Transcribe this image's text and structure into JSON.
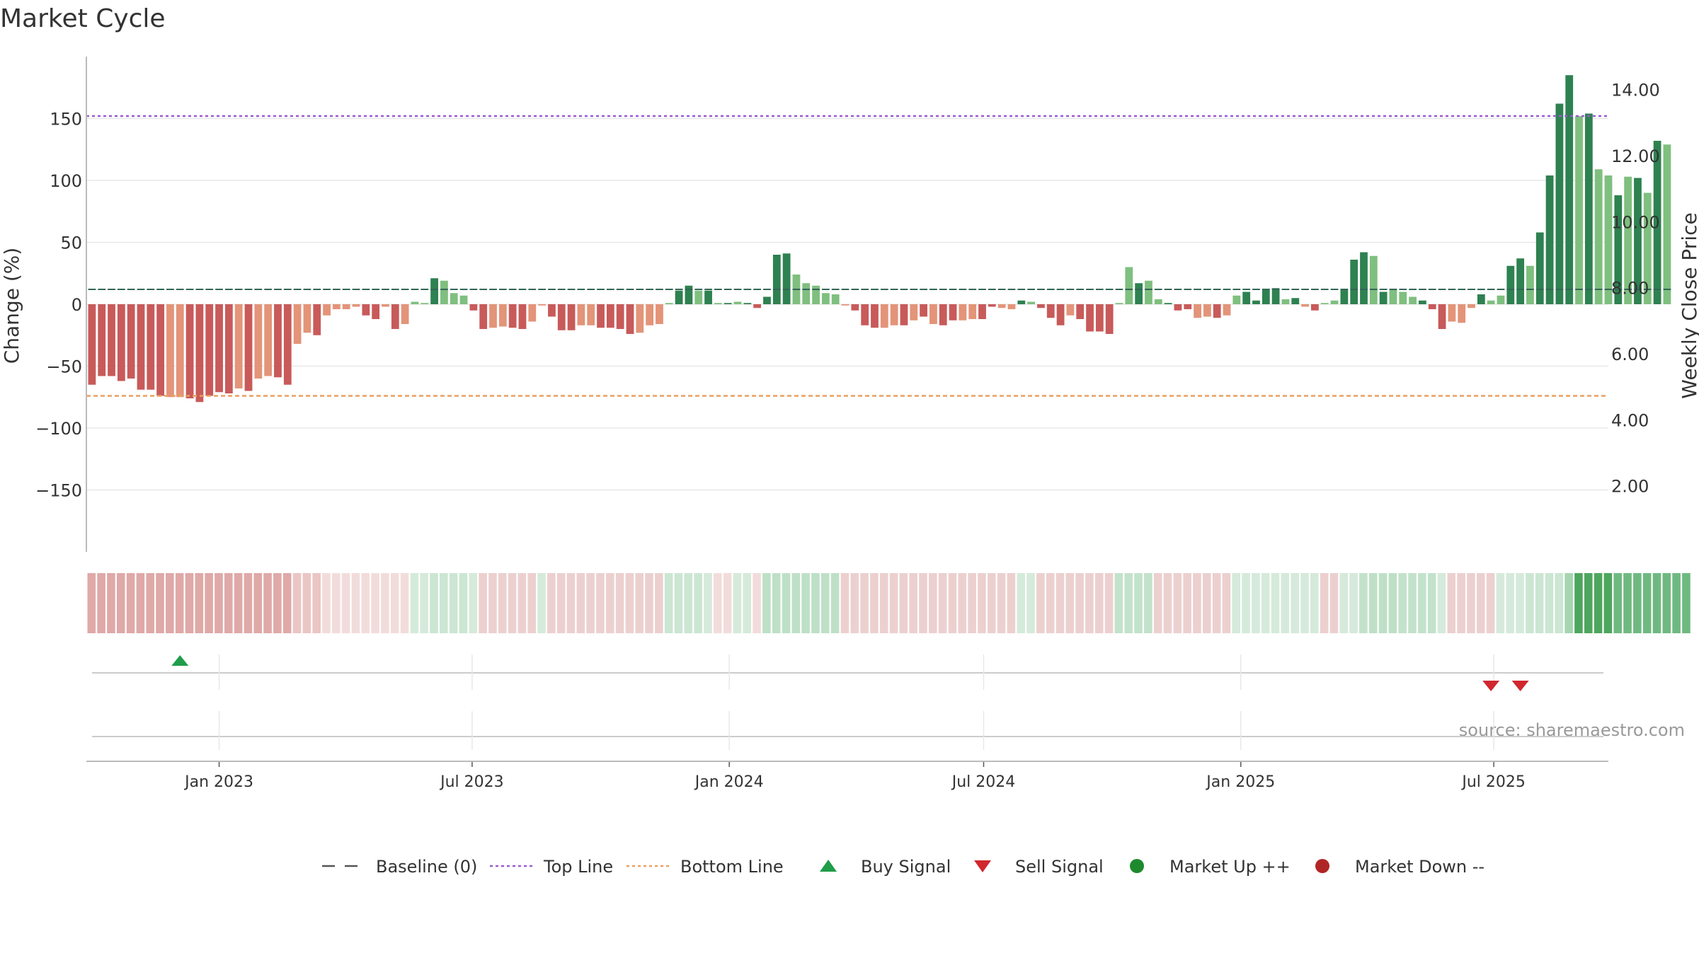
{
  "chart_data": {
    "type": "bar",
    "title": "Market Cycle",
    "ylabel": "Change (%)",
    "ylabel_right": "Weekly Close Price",
    "ylim": [
      -200,
      200
    ],
    "ylim_right": [
      0,
      15
    ],
    "y_ticks": [
      150,
      100,
      50,
      0,
      -50,
      -100,
      -150
    ],
    "y_tick_labels": [
      "150",
      "100",
      "50",
      "0",
      "−50",
      "−100",
      "−150"
    ],
    "y_right_ticks": [
      14,
      12,
      10,
      8,
      6,
      4,
      2
    ],
    "y_right_tick_labels": [
      "14.00",
      "12.00",
      "10.00",
      "8.00",
      "6.00",
      "4.00",
      "2.00"
    ],
    "x_range": [
      "2022-09-28",
      "2025-09-21"
    ],
    "x_ticks": [
      "2023-01-01",
      "2023-07-01",
      "2024-01-01",
      "2024-07-01",
      "2025-01-01",
      "2025-07-01"
    ],
    "x_tick_labels": [
      "Jan 2023",
      "Jul 2023",
      "Jan 2024",
      "Jul 2024",
      "Jan 2025",
      "Jul 2025"
    ],
    "grid": true,
    "reference_lines": [
      {
        "name": "Top Line",
        "value": 152,
        "color": "#9b59d0",
        "style": "dotted"
      },
      {
        "name": "Bottom Line",
        "value": -74,
        "color": "#e8a060",
        "style": "dashed"
      },
      {
        "name": "Baseline (0)",
        "value": 0,
        "color": "#555555",
        "style": "dashed"
      }
    ],
    "first_week": "2022-10-02",
    "week_step_days": 7,
    "change_values": [
      -65,
      -58,
      -58,
      -62,
      -60,
      -69,
      -69,
      -74,
      -75,
      -75,
      -76,
      -79,
      -74,
      -71,
      -72,
      -68,
      -70,
      -60,
      -58,
      -59,
      -65,
      -32,
      -23,
      -25,
      -9,
      -4,
      -4,
      -2,
      -9,
      -12,
      -2,
      -20,
      -16,
      2,
      1,
      21,
      19,
      9,
      7,
      -5,
      -20,
      -19,
      -18,
      -19,
      -20,
      -14,
      -1,
      -10,
      -21,
      -21,
      -17,
      -17,
      -19,
      -19,
      -20,
      -24,
      -23,
      -17,
      -16,
      1,
      11,
      15,
      11,
      11,
      1,
      1,
      2,
      1,
      -3,
      6,
      40,
      41,
      24,
      17,
      15,
      9,
      8,
      -1,
      -5,
      -17,
      -19,
      -19,
      -17,
      -17,
      -13,
      -10,
      -16,
      -17,
      -13,
      -13,
      -12,
      -12,
      -2,
      -3,
      -4,
      3,
      2,
      -3,
      -11,
      -17,
      -9,
      -12,
      -22,
      -22,
      -24,
      1,
      30,
      17,
      19,
      4,
      1,
      -5,
      -4,
      -11,
      -10,
      -11,
      -9,
      7,
      10,
      3,
      12,
      13,
      4,
      5,
      -2,
      -5,
      1,
      3,
      12,
      36,
      42,
      39,
      10,
      12,
      10,
      6,
      3,
      -4,
      -20,
      -14,
      -15,
      -3,
      8,
      3,
      7,
      31,
      37,
      31,
      58,
      104,
      162,
      185,
      152,
      154,
      109,
      104,
      88,
      103,
      102,
      90,
      132,
      129
    ],
    "change_shades": [
      "d",
      "d",
      "d",
      "d",
      "d",
      "d",
      "d",
      "d",
      "l",
      "l",
      "d",
      "d",
      "d",
      "d",
      "d",
      "l",
      "d",
      "l",
      "l",
      "d",
      "d",
      "l",
      "l",
      "d",
      "l",
      "l",
      "l",
      "l",
      "d",
      "d",
      "l",
      "d",
      "l",
      "l",
      "l",
      "d",
      "l",
      "l",
      "l",
      "d",
      "d",
      "l",
      "l",
      "d",
      "d",
      "l",
      "l",
      "d",
      "d",
      "d",
      "l",
      "l",
      "d",
      "d",
      "d",
      "d",
      "l",
      "l",
      "l",
      "l",
      "d",
      "d",
      "l",
      "d",
      "l",
      "d",
      "l",
      "d",
      "d",
      "d",
      "d",
      "d",
      "l",
      "l",
      "l",
      "l",
      "l",
      "l",
      "d",
      "d",
      "d",
      "l",
      "l",
      "d",
      "l",
      "d",
      "l",
      "d",
      "d",
      "l",
      "l",
      "d",
      "d",
      "l",
      "l",
      "d",
      "l",
      "d",
      "d",
      "d",
      "l",
      "d",
      "d",
      "d",
      "d",
      "l",
      "l",
      "d",
      "l",
      "l",
      "d",
      "d",
      "d",
      "l",
      "l",
      "d",
      "l",
      "l",
      "d",
      "d",
      "d",
      "d",
      "l",
      "d",
      "l",
      "d",
      "l",
      "l",
      "d",
      "d",
      "d",
      "l",
      "d",
      "l",
      "l",
      "l",
      "d",
      "d",
      "d",
      "l",
      "l",
      "l",
      "d",
      "l",
      "l",
      "d",
      "d",
      "l",
      "d",
      "d",
      "d",
      "d",
      "l",
      "d",
      "l",
      "l",
      "d",
      "l",
      "d",
      "l",
      "d",
      "l"
    ],
    "price_line_value": 7.95,
    "heat_colors": [
      "#dfa9a8",
      "#dfa9a8",
      "#dfa9a8",
      "#dfa9a8",
      "#dfa9a8",
      "#dfa9a8",
      "#dfa9a8",
      "#dfa9a8",
      "#dfa9a8",
      "#dfa9a8",
      "#dfa9a8",
      "#dfa9a8",
      "#dfa9a8",
      "#dfa9a8",
      "#dfa9a8",
      "#dfa9a8",
      "#dfa9a8",
      "#dfa9a8",
      "#dfa9a8",
      "#dfa9a8",
      "#dfa9a8",
      "#eac6c4",
      "#eac6c4",
      "#eac6c4",
      "#f2dcdb",
      "#f2dcdb",
      "#f2dcdb",
      "#f2dcdb",
      "#f2dcdb",
      "#f2dcdb",
      "#f2dcdb",
      "#f2dcdb",
      "#f2dcdb",
      "#d5eadb",
      "#d5eadb",
      "#cbe6d2",
      "#cbe6d2",
      "#cbe6d2",
      "#cbe6d2",
      "#d5eadb",
      "#ecd0cf",
      "#ecd0cf",
      "#ecd0cf",
      "#ecd0cf",
      "#ecd0cf",
      "#ecd0cf",
      "#d5eadb",
      "#ecd0cf",
      "#ecd0cf",
      "#ecd0cf",
      "#ecd0cf",
      "#ecd0cf",
      "#ecd0cf",
      "#ecd0cf",
      "#ecd0cf",
      "#ecd0cf",
      "#ecd0cf",
      "#ecd0cf",
      "#ecd0cf",
      "#cbe6d2",
      "#cbe6d2",
      "#cbe6d2",
      "#cbe6d2",
      "#d5eadb",
      "#f2dcdb",
      "#f2dcdb",
      "#d5eadb",
      "#d5eadb",
      "#f2dcdb",
      "#bee0c7",
      "#bee0c7",
      "#bee0c7",
      "#bee0c7",
      "#bee0c7",
      "#bee0c7",
      "#bee0c7",
      "#bee0c7",
      "#ecd0cf",
      "#ecd0cf",
      "#ecd0cf",
      "#ecd0cf",
      "#ecd0cf",
      "#ecd0cf",
      "#ecd0cf",
      "#ecd0cf",
      "#ecd0cf",
      "#ecd0cf",
      "#ecd0cf",
      "#ecd0cf",
      "#ecd0cf",
      "#ecd0cf",
      "#ecd0cf",
      "#ecd0cf",
      "#ecd0cf",
      "#ecd0cf",
      "#d5eadb",
      "#d5eadb",
      "#ecd0cf",
      "#ecd0cf",
      "#ecd0cf",
      "#ecd0cf",
      "#ecd0cf",
      "#ecd0cf",
      "#ecd0cf",
      "#ecd0cf",
      "#c3e2cb",
      "#c3e2cb",
      "#c3e2cb",
      "#c3e2cb",
      "#ecd0cf",
      "#ecd0cf",
      "#ecd0cf",
      "#ecd0cf",
      "#ecd0cf",
      "#ecd0cf",
      "#ecd0cf",
      "#ecd0cf",
      "#d5eadb",
      "#d5eadb",
      "#d5eadb",
      "#d5eadb",
      "#d5eadb",
      "#d5eadb",
      "#d5eadb",
      "#d5eadb",
      "#d5eadb",
      "#ecd0cf",
      "#ecd0cf",
      "#d5eadb",
      "#d5eadb",
      "#c3e2cb",
      "#bee0c7",
      "#bee0c7",
      "#bee0c7",
      "#c3e2cb",
      "#c3e2cb",
      "#c3e2cb",
      "#c3e2cb",
      "#d5eadb",
      "#ecd0cf",
      "#ecd0cf",
      "#ecd0cf",
      "#ecd0cf",
      "#ecd0cf",
      "#d5eadb",
      "#d5eadb",
      "#d5eadb",
      "#cbe6d2",
      "#cbe6d2",
      "#cbe6d2",
      "#cbe6d2",
      "#a6d5b1",
      "#4ea65e",
      "#4ea65e",
      "#4ea65e",
      "#4ea65e",
      "#6fb981",
      "#6fb981",
      "#6fb981",
      "#6fb981",
      "#6fb981",
      "#6fb981",
      "#6fb981",
      "#6fb981"
    ],
    "buy_signals": [
      "2022-12-04"
    ],
    "sell_signals": [
      "2025-06-29",
      "2025-07-20"
    ],
    "legend": [
      {
        "label": "Baseline (0)",
        "marker": "dash",
        "color": "#555555"
      },
      {
        "label": "Top Line",
        "marker": "dotted",
        "color": "#9b59d0"
      },
      {
        "label": "Bottom Line",
        "marker": "dotted",
        "color": "#e8a060"
      },
      {
        "label": "Buy Signal",
        "marker": "triangle-up",
        "color": "#1f9d4a"
      },
      {
        "label": "Sell Signal",
        "marker": "triangle-down",
        "color": "#d0282e"
      },
      {
        "label": "Market Up ++",
        "marker": "circle",
        "color": "#1e8a2e"
      },
      {
        "label": "Market Down --",
        "marker": "circle",
        "color": "#b02626"
      }
    ],
    "legend_position": "bottom",
    "source_text": "source: sharemaestro.com",
    "colors": {
      "up_dark": "#2e8150",
      "up_light": "#7fbf7f",
      "down_dark": "#c85a5a",
      "down_light": "#e39479",
      "grid": "#e8e8e8",
      "axis": "#bbbbbb"
    }
  }
}
